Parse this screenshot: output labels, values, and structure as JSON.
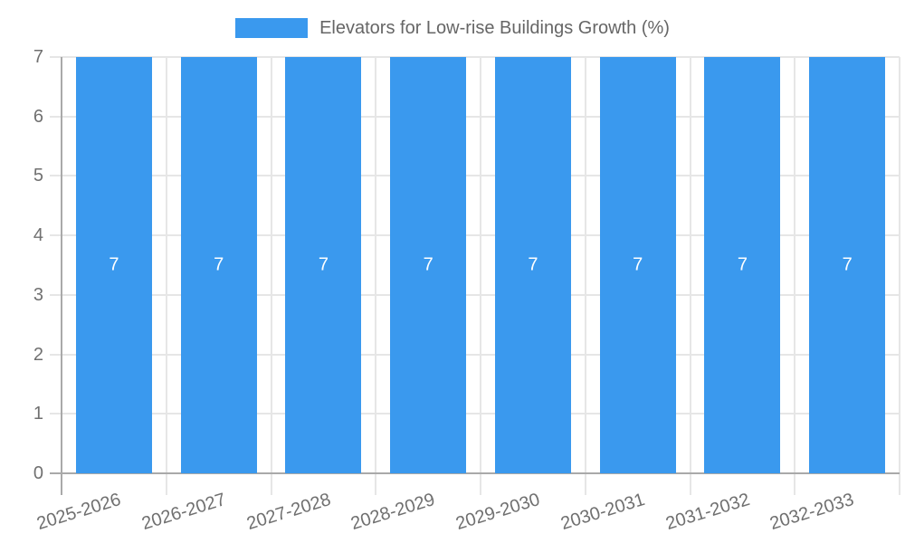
{
  "chart_data": {
    "type": "bar",
    "title": "Elevators for Low-rise Buildings Growth (%)",
    "categories": [
      "2025-2026",
      "2026-2027",
      "2027-2028",
      "2028-2029",
      "2029-2030",
      "2030-2031",
      "2031-2032",
      "2032-2033"
    ],
    "series": [
      {
        "name": "Elevators for Low-rise Buildings Growth (%)",
        "values": [
          7,
          7,
          7,
          7,
          7,
          7,
          7,
          7
        ]
      }
    ],
    "bar_value_labels": [
      "7",
      "7",
      "7",
      "7",
      "7",
      "7",
      "7",
      "7"
    ],
    "xlabel": "",
    "ylabel": "",
    "ylim": [
      0,
      7
    ],
    "yticks": [
      0,
      1,
      2,
      3,
      4,
      5,
      6,
      7
    ],
    "grid": true,
    "legend_position": "top",
    "colors": {
      "bar": "#3A99EE",
      "bar_label": "#FFFFFF",
      "grid": "#E6E6E6",
      "axis": "#A9A9A9",
      "tick_text": "#707070",
      "legend_text": "#666666"
    }
  }
}
